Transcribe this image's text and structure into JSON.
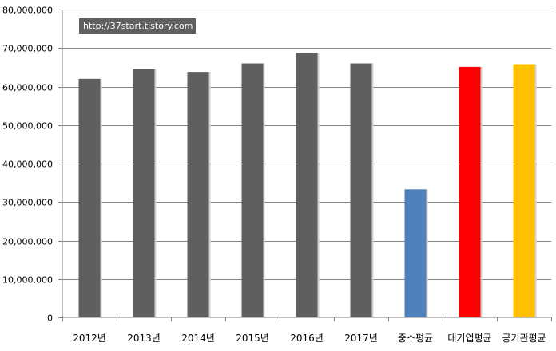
{
  "chart_data": {
    "type": "bar",
    "title": "",
    "xlabel": "",
    "ylabel": "",
    "categories": [
      "2012년",
      "2013년",
      "2014년",
      "2015년",
      "2016년",
      "2017년",
      "중소평균",
      "대기업평균",
      "공기관평균"
    ],
    "values": [
      62000000,
      64500000,
      63800000,
      66000000,
      68800000,
      66000000,
      33300000,
      65100000,
      65800000
    ],
    "bar_colors": [
      "#5f5f5f",
      "#5f5f5f",
      "#5f5f5f",
      "#5f5f5f",
      "#5f5f5f",
      "#5f5f5f",
      "#4f81bd",
      "#ff0000",
      "#ffc000"
    ],
    "ylim": [
      0,
      80000000
    ],
    "yticks": [
      0,
      10000000,
      20000000,
      30000000,
      40000000,
      50000000,
      60000000,
      70000000,
      80000000
    ],
    "ytick_labels": [
      "0",
      "10,000,000",
      "20,000,000",
      "30,000,000",
      "40,000,000",
      "50,000,000",
      "60,000,000",
      "70,000,000",
      "80,000,000"
    ],
    "grid": true,
    "legend": "none"
  },
  "watermark": {
    "text": "http://37start.tistory.com",
    "background": "#5f5f5f",
    "color": "#ffffff"
  }
}
